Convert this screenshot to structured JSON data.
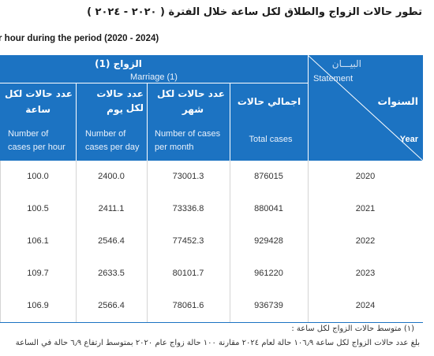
{
  "title_ar": "تطور حالات الزواج والطلاق لكل ساعة خلال الفترة ( ٢٠٢٠ - ٢٠٢٤ )",
  "title_en": "r hour during the period (2020 - 2024)",
  "header": {
    "group_ar": "الزواج   (1)",
    "group_en": "Marriage (1)",
    "statement_ar": "البيـــان",
    "statement_en": "Statement",
    "years_ar": "السنوات",
    "years_en": "Year",
    "columns": [
      {
        "ar_line1": "عدد حالات لكل",
        "ar_line2": "ساعة",
        "en_line1": "Number of",
        "en_line2": "cases per hour"
      },
      {
        "ar_line1": "عدد حالات لكل",
        "ar_line2": "يوم",
        "en_line1": "Number of",
        "en_line2": "cases per day"
      },
      {
        "ar_line1": "عدد حالات لكل",
        "ar_line2": "شهر",
        "en_line1": "Number of cases",
        "en_line2": "per month"
      },
      {
        "ar_line1": "اجمالي حالات",
        "ar_line2": "",
        "en_line1": "Total cases",
        "en_line2": ""
      }
    ]
  },
  "rows": [
    {
      "per_hour": "100.0",
      "per_day": "2400.0",
      "per_month": "73001.3",
      "total": "876015",
      "year": "2020"
    },
    {
      "per_hour": "100.5",
      "per_day": "2411.1",
      "per_month": "73336.8",
      "total": "880041",
      "year": "2021"
    },
    {
      "per_hour": "106.1",
      "per_day": "2546.4",
      "per_month": "77452.3",
      "total": "929428",
      "year": "2022"
    },
    {
      "per_hour": "109.7",
      "per_day": "2633.5",
      "per_month": "80101.7",
      "total": "961220",
      "year": "2023"
    },
    {
      "per_hour": "106.9",
      "per_day": "2566.4",
      "per_month": "78061.6",
      "total": "936739",
      "year": "2024"
    }
  ],
  "notes": {
    "note1": "(١)  متوسط حالات الزواج لكل ساعة :",
    "note2": "بلغ عدد حالات الزواج لكل ساعة ١٠٦٫٩ حالة لعام ٢٠٢٤ مقارنة ١٠٠ حالة زواج عام ٢٠٢٠ بمتوسط ارتفاع ٦٫٩ حالة في الساعة"
  }
}
